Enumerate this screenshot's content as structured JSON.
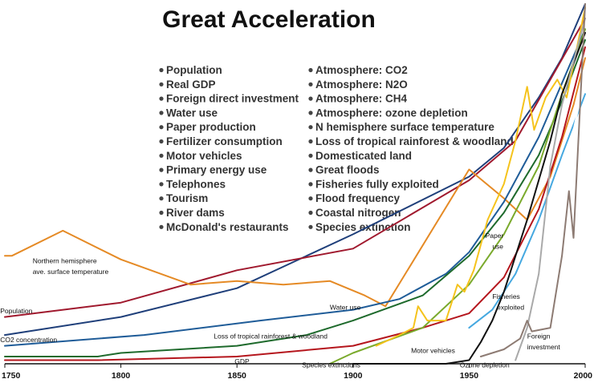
{
  "chart_data": {
    "type": "line",
    "title": "Great Acceleration",
    "xlabel": "",
    "ylabel": "",
    "x_ticks": [
      1750,
      1800,
      1850,
      1900,
      1950,
      2000
    ],
    "xlim": [
      1750,
      2000
    ],
    "ylim": [
      0,
      100
    ],
    "grid": false,
    "legend_left": [
      "Population",
      "Real GDP",
      "Foreign direct investment",
      "Water use",
      "Paper production",
      "Fertilizer consumption",
      "Motor vehicles",
      "Primary energy use",
      "Telephones",
      "Tourism",
      "River dams",
      "McDonald's restaurants"
    ],
    "legend_right": [
      "Atmosphere: CO2",
      "Atmosphere: N2O",
      "Atmosphere: CH4",
      "Atmosphere: ozone depletion",
      "N hemisphere surface temperature",
      "Loss of tropical rainforest & woodland",
      "Domesticated land",
      "Great floods",
      "Fisheries fully exploited",
      "Flood frequency",
      "Coastal nitrogen",
      "Species extinction"
    ],
    "series": [
      {
        "color": "#1f3f7a",
        "points": [
          [
            1750,
            8
          ],
          [
            1800,
            13
          ],
          [
            1850,
            21
          ],
          [
            1900,
            36
          ],
          [
            1950,
            52
          ],
          [
            1965,
            60
          ],
          [
            1980,
            74
          ],
          [
            1990,
            85
          ],
          [
            2000,
            100
          ]
        ]
      },
      {
        "color": "#a0192e",
        "points": [
          [
            1750,
            13
          ],
          [
            1800,
            17
          ],
          [
            1850,
            26
          ],
          [
            1900,
            32
          ],
          [
            1950,
            51
          ],
          [
            1970,
            62
          ],
          [
            1985,
            79
          ],
          [
            2000,
            96
          ]
        ]
      },
      {
        "color": "#e58a25",
        "points": [
          [
            1750,
            30
          ],
          [
            1753,
            30
          ],
          [
            1775,
            37
          ],
          [
            1800,
            29
          ],
          [
            1830,
            22
          ],
          [
            1850,
            23
          ],
          [
            1870,
            22
          ],
          [
            1890,
            23
          ],
          [
            1905,
            19
          ],
          [
            1914,
            16
          ],
          [
            1950,
            54
          ],
          [
            1965,
            46
          ],
          [
            1975,
            40
          ],
          [
            1985,
            52
          ],
          [
            1995,
            72
          ],
          [
            2000,
            85
          ]
        ]
      },
      {
        "color": "#1f5c98",
        "points": [
          [
            1750,
            5
          ],
          [
            1810,
            8
          ],
          [
            1860,
            12
          ],
          [
            1900,
            15
          ],
          [
            1920,
            18
          ],
          [
            1940,
            25
          ],
          [
            1950,
            31
          ],
          [
            1965,
            45
          ],
          [
            1980,
            63
          ],
          [
            1990,
            78
          ],
          [
            2000,
            93
          ]
        ]
      },
      {
        "color": "#1e6a2c",
        "points": [
          [
            1750,
            2
          ],
          [
            1790,
            2
          ],
          [
            1800,
            3
          ],
          [
            1850,
            5
          ],
          [
            1880,
            8
          ],
          [
            1900,
            12
          ],
          [
            1930,
            19
          ],
          [
            1950,
            30
          ],
          [
            1965,
            42
          ],
          [
            1980,
            58
          ],
          [
            1990,
            73
          ],
          [
            2000,
            90
          ]
        ]
      },
      {
        "color": "#b5161d",
        "points": [
          [
            1750,
            1
          ],
          [
            1790,
            1
          ],
          [
            1850,
            2
          ],
          [
            1900,
            5
          ],
          [
            1930,
            10
          ],
          [
            1950,
            14
          ],
          [
            1965,
            24
          ],
          [
            1980,
            43
          ],
          [
            1990,
            63
          ],
          [
            2000,
            88
          ]
        ]
      },
      {
        "color": "#7aaa2c",
        "points": [
          [
            1890,
            0
          ],
          [
            1900,
            3
          ],
          [
            1930,
            10
          ],
          [
            1950,
            22
          ],
          [
            1965,
            36
          ],
          [
            1980,
            55
          ],
          [
            1990,
            75
          ],
          [
            2000,
            93
          ]
        ]
      },
      {
        "color": "#f5c31c",
        "points": [
          [
            1910,
            5
          ],
          [
            1920,
            8
          ],
          [
            1926,
            10
          ],
          [
            1928,
            16
          ],
          [
            1932,
            12
          ],
          [
            1940,
            12
          ],
          [
            1945,
            22
          ],
          [
            1948,
            20
          ],
          [
            1952,
            26
          ],
          [
            1958,
            40
          ],
          [
            1965,
            50
          ],
          [
            1970,
            62
          ],
          [
            1975,
            77
          ],
          [
            1978,
            65
          ],
          [
            1983,
            74
          ],
          [
            1988,
            79
          ],
          [
            1992,
            74
          ],
          [
            2000,
            99
          ]
        ]
      },
      {
        "color": "#45a8e0",
        "points": [
          [
            1950,
            10
          ],
          [
            1960,
            15
          ],
          [
            1970,
            25
          ],
          [
            1980,
            40
          ],
          [
            1990,
            58
          ],
          [
            2000,
            75
          ]
        ]
      },
      {
        "color": "#ffffff",
        "points": [
          [
            1950,
            6
          ],
          [
            1970,
            12
          ],
          [
            1980,
            25
          ],
          [
            1990,
            50
          ],
          [
            2000,
            80
          ]
        ]
      },
      {
        "color": "#111111",
        "points": [
          [
            1900,
            0
          ],
          [
            1940,
            0
          ],
          [
            1950,
            1
          ],
          [
            1955,
            6
          ],
          [
            1960,
            12
          ],
          [
            1965,
            20
          ],
          [
            1975,
            40
          ],
          [
            1985,
            62
          ],
          [
            1990,
            75
          ],
          [
            2000,
            92
          ]
        ]
      },
      {
        "color": "#a9a9a9",
        "points": [
          [
            1970,
            1
          ],
          [
            1975,
            10
          ],
          [
            1980,
            25
          ],
          [
            1985,
            55
          ],
          [
            1990,
            72
          ],
          [
            2000,
            96
          ]
        ]
      },
      {
        "color": "#8d7b73",
        "points": [
          [
            1955,
            2
          ],
          [
            1965,
            4
          ],
          [
            1972,
            7
          ],
          [
            1975,
            12
          ],
          [
            1977,
            9
          ],
          [
            1985,
            10
          ],
          [
            1990,
            30
          ],
          [
            1993,
            48
          ],
          [
            1995,
            35
          ],
          [
            2000,
            100
          ]
        ]
      }
    ],
    "annotations": [
      {
        "text": "Northern hemisphere",
        "x": 1762,
        "y": 28
      },
      {
        "text": "ave. surface temperature",
        "x": 1762,
        "y": 25
      },
      {
        "text": "Population",
        "x": 1748,
        "y": 14
      },
      {
        "text": "CO2 concentration",
        "x": 1748,
        "y": 6
      },
      {
        "text": "Loss of tropical rainforest & woodland",
        "x": 1840,
        "y": 7
      },
      {
        "text": "GDP",
        "x": 1849,
        "y": 0
      },
      {
        "text": "Species extinctions",
        "x": 1878,
        "y": -1
      },
      {
        "text": "Water use",
        "x": 1890,
        "y": 15
      },
      {
        "text": "Paper",
        "x": 1957,
        "y": 35
      },
      {
        "text": "use",
        "x": 1960,
        "y": 32
      },
      {
        "text": "Fisheries",
        "x": 1960,
        "y": 18
      },
      {
        "text": "exploited",
        "x": 1962,
        "y": 15
      },
      {
        "text": "Foreign",
        "x": 1975,
        "y": 7
      },
      {
        "text": "investment",
        "x": 1975,
        "y": 4
      },
      {
        "text": "Motor vehicles",
        "x": 1925,
        "y": 3
      },
      {
        "text": "Ozone depletion",
        "x": 1946,
        "y": -1
      }
    ]
  }
}
